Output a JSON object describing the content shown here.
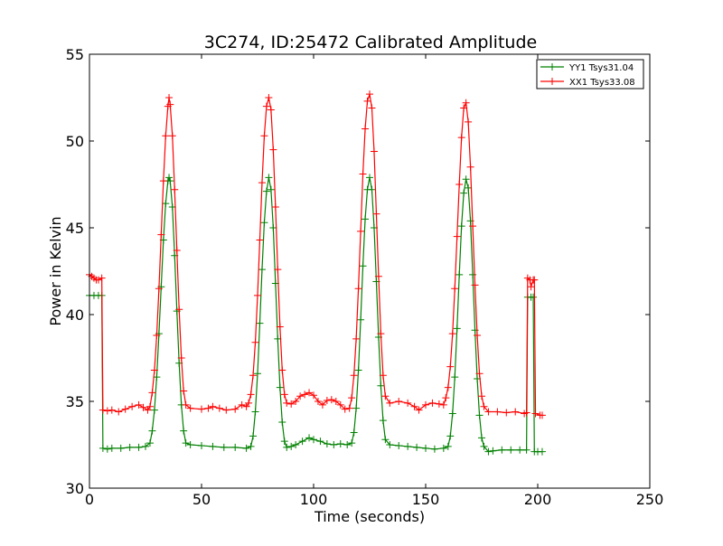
{
  "chart_data": {
    "type": "line",
    "title": "3C274, ID:25472 Calibrated Amplitude",
    "xlabel": "Time (seconds)",
    "ylabel": "Power in Kelvin",
    "xlim": [
      0,
      250
    ],
    "ylim": [
      30,
      55
    ],
    "x_ticks": [
      0,
      50,
      100,
      150,
      200,
      250
    ],
    "y_ticks": [
      30,
      35,
      40,
      45,
      50,
      55
    ],
    "x_tick_labels": [
      "0",
      "50",
      "100",
      "150",
      "200",
      "250"
    ],
    "y_tick_labels": [
      "30",
      "35",
      "40",
      "45",
      "50",
      "55"
    ],
    "grid": false,
    "legend": {
      "position": "top-right"
    },
    "series": [
      {
        "name": "YY1 Tsys31.04",
        "color": "#008000",
        "marker": "+",
        "points": [
          [
            0,
            41.1
          ],
          [
            2,
            41.1
          ],
          [
            4,
            41.1
          ],
          [
            5.5,
            41.1
          ],
          [
            6,
            32.3
          ],
          [
            8,
            32.25
          ],
          [
            10,
            32.3
          ],
          [
            14,
            32.3
          ],
          [
            18,
            32.35
          ],
          [
            22,
            32.35
          ],
          [
            25,
            32.4
          ],
          [
            27,
            32.6
          ],
          [
            28,
            33.3
          ],
          [
            29,
            34.5
          ],
          [
            30,
            36.4
          ],
          [
            31,
            38.9
          ],
          [
            32,
            41.6
          ],
          [
            33,
            44.3
          ],
          [
            34,
            46.4
          ],
          [
            35,
            47.7
          ],
          [
            35.5,
            47.9
          ],
          [
            36,
            47.7
          ],
          [
            37,
            46.2
          ],
          [
            38,
            43.4
          ],
          [
            39,
            40.2
          ],
          [
            40,
            37.2
          ],
          [
            41,
            34.8
          ],
          [
            42,
            33.3
          ],
          [
            43,
            32.6
          ],
          [
            45,
            32.5
          ],
          [
            50,
            32.45
          ],
          [
            55,
            32.4
          ],
          [
            60,
            32.35
          ],
          [
            65,
            32.35
          ],
          [
            70,
            32.3
          ],
          [
            72,
            32.4
          ],
          [
            73,
            33.0
          ],
          [
            74,
            34.4
          ],
          [
            75,
            36.6
          ],
          [
            76,
            39.5
          ],
          [
            77,
            42.6
          ],
          [
            78,
            45.3
          ],
          [
            79,
            47.1
          ],
          [
            80,
            47.9
          ],
          [
            81,
            47.2
          ],
          [
            82,
            45.0
          ],
          [
            83,
            41.8
          ],
          [
            84,
            38.6
          ],
          [
            85,
            35.8
          ],
          [
            86,
            33.8
          ],
          [
            87,
            32.7
          ],
          [
            88,
            32.35
          ],
          [
            90,
            32.4
          ],
          [
            92,
            32.5
          ],
          [
            95,
            32.7
          ],
          [
            98,
            32.9
          ],
          [
            100,
            32.8
          ],
          [
            103,
            32.7
          ],
          [
            106,
            32.55
          ],
          [
            109,
            32.5
          ],
          [
            112,
            32.55
          ],
          [
            115,
            32.5
          ],
          [
            117,
            32.6
          ],
          [
            118,
            33.2
          ],
          [
            119,
            34.6
          ],
          [
            120,
            36.8
          ],
          [
            121,
            39.7
          ],
          [
            122,
            42.8
          ],
          [
            123,
            45.5
          ],
          [
            124,
            47.2
          ],
          [
            125,
            47.9
          ],
          [
            126,
            47.2
          ],
          [
            127,
            45.0
          ],
          [
            128,
            41.9
          ],
          [
            129,
            38.7
          ],
          [
            130,
            35.9
          ],
          [
            131,
            33.9
          ],
          [
            132,
            32.8
          ],
          [
            134,
            32.5
          ],
          [
            138,
            32.45
          ],
          [
            142,
            32.4
          ],
          [
            146,
            32.35
          ],
          [
            150,
            32.3
          ],
          [
            154,
            32.25
          ],
          [
            158,
            32.3
          ],
          [
            160,
            32.4
          ],
          [
            161,
            33.0
          ],
          [
            162,
            34.3
          ],
          [
            163,
            36.4
          ],
          [
            164,
            39.2
          ],
          [
            165,
            42.3
          ],
          [
            166,
            45.1
          ],
          [
            167,
            47.0
          ],
          [
            168,
            47.8
          ],
          [
            169,
            47.3
          ],
          [
            170,
            45.4
          ],
          [
            171,
            42.3
          ],
          [
            172,
            39.1
          ],
          [
            173,
            36.3
          ],
          [
            174,
            34.2
          ],
          [
            175,
            32.9
          ],
          [
            176,
            32.4
          ],
          [
            178,
            32.1
          ],
          [
            180,
            32.15
          ],
          [
            184,
            32.2
          ],
          [
            188,
            32.2
          ],
          [
            192,
            32.2
          ],
          [
            195,
            32.2
          ],
          [
            195.5,
            41.0
          ],
          [
            197,
            41.0
          ],
          [
            198,
            41.0
          ],
          [
            198.5,
            32.1
          ],
          [
            200,
            32.1
          ],
          [
            202,
            32.1
          ]
        ]
      },
      {
        "name": "XX1 Tsys33.08",
        "color": "#ff0000",
        "marker": "+",
        "points": [
          [
            0,
            42.3
          ],
          [
            1,
            42.2
          ],
          [
            2,
            42.1
          ],
          [
            3,
            42.0
          ],
          [
            4,
            42.0
          ],
          [
            5.5,
            42.1
          ],
          [
            6,
            34.5
          ],
          [
            8,
            34.45
          ],
          [
            10,
            34.5
          ],
          [
            13,
            34.4
          ],
          [
            16,
            34.55
          ],
          [
            19,
            34.7
          ],
          [
            22,
            34.8
          ],
          [
            24,
            34.65
          ],
          [
            26,
            34.5
          ],
          [
            27,
            34.7
          ],
          [
            28,
            35.5
          ],
          [
            29,
            36.8
          ],
          [
            30,
            38.8
          ],
          [
            31,
            41.5
          ],
          [
            32,
            44.6
          ],
          [
            33,
            47.7
          ],
          [
            34,
            50.3
          ],
          [
            35,
            52.0
          ],
          [
            35.5,
            52.5
          ],
          [
            36,
            52.1
          ],
          [
            37,
            50.3
          ],
          [
            38,
            47.2
          ],
          [
            39,
            43.7
          ],
          [
            40,
            40.3
          ],
          [
            41,
            37.5
          ],
          [
            42,
            35.6
          ],
          [
            43,
            34.8
          ],
          [
            45,
            34.6
          ],
          [
            50,
            34.55
          ],
          [
            53,
            34.6
          ],
          [
            55,
            34.7
          ],
          [
            58,
            34.6
          ],
          [
            61,
            34.5
          ],
          [
            65,
            34.55
          ],
          [
            68,
            34.8
          ],
          [
            70,
            34.7
          ],
          [
            71,
            34.9
          ],
          [
            72,
            35.4
          ],
          [
            73,
            36.5
          ],
          [
            74,
            38.4
          ],
          [
            75,
            41.1
          ],
          [
            76,
            44.3
          ],
          [
            77,
            47.6
          ],
          [
            78,
            50.3
          ],
          [
            79,
            52.0
          ],
          [
            80,
            52.5
          ],
          [
            81,
            51.8
          ],
          [
            82,
            49.5
          ],
          [
            83,
            46.2
          ],
          [
            84,
            42.6
          ],
          [
            85,
            39.3
          ],
          [
            86,
            36.8
          ],
          [
            87,
            35.4
          ],
          [
            88,
            34.9
          ],
          [
            90,
            34.85
          ],
          [
            92,
            35.0
          ],
          [
            94,
            35.3
          ],
          [
            96,
            35.4
          ],
          [
            98,
            35.5
          ],
          [
            100,
            35.35
          ],
          [
            102,
            35.0
          ],
          [
            104,
            34.8
          ],
          [
            106,
            35.05
          ],
          [
            108,
            35.1
          ],
          [
            110,
            35.0
          ],
          [
            112,
            34.8
          ],
          [
            114,
            34.55
          ],
          [
            116,
            34.6
          ],
          [
            117,
            35.2
          ],
          [
            118,
            36.5
          ],
          [
            119,
            38.6
          ],
          [
            120,
            41.5
          ],
          [
            121,
            44.8
          ],
          [
            122,
            48.1
          ],
          [
            123,
            50.7
          ],
          [
            124,
            52.3
          ],
          [
            125,
            52.7
          ],
          [
            126,
            51.9
          ],
          [
            127,
            49.4
          ],
          [
            128,
            45.8
          ],
          [
            129,
            42.2
          ],
          [
            130,
            38.9
          ],
          [
            131,
            36.5
          ],
          [
            132,
            35.3
          ],
          [
            134,
            34.9
          ],
          [
            138,
            35.0
          ],
          [
            142,
            34.9
          ],
          [
            145,
            34.7
          ],
          [
            147,
            34.5
          ],
          [
            150,
            34.8
          ],
          [
            153,
            34.9
          ],
          [
            156,
            34.85
          ],
          [
            158,
            34.8
          ],
          [
            159,
            35.2
          ],
          [
            160,
            35.8
          ],
          [
            161,
            37.0
          ],
          [
            162,
            38.9
          ],
          [
            163,
            41.5
          ],
          [
            164,
            44.5
          ],
          [
            165,
            47.5
          ],
          [
            166,
            50.2
          ],
          [
            167,
            51.9
          ],
          [
            168,
            52.2
          ],
          [
            169,
            51.1
          ],
          [
            170,
            48.5
          ],
          [
            171,
            45.1
          ],
          [
            172,
            41.7
          ],
          [
            173,
            38.8
          ],
          [
            174,
            36.6
          ],
          [
            175,
            35.3
          ],
          [
            176,
            34.7
          ],
          [
            178,
            34.4
          ],
          [
            182,
            34.4
          ],
          [
            186,
            34.35
          ],
          [
            190,
            34.4
          ],
          [
            194,
            34.3
          ],
          [
            195,
            34.35
          ],
          [
            195.5,
            42.1
          ],
          [
            196.5,
            42.0
          ],
          [
            197,
            41.6
          ],
          [
            198,
            42.0
          ],
          [
            198.5,
            42.0
          ],
          [
            199,
            34.3
          ],
          [
            201,
            34.2
          ],
          [
            202,
            34.2
          ]
        ]
      }
    ]
  }
}
